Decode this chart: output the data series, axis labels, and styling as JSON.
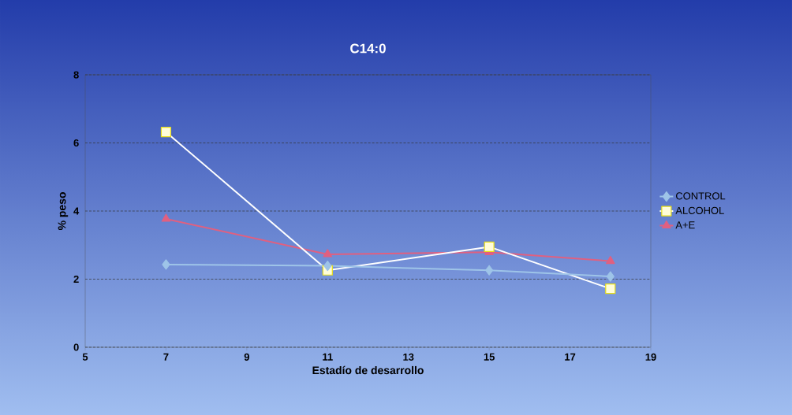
{
  "chart_data": {
    "type": "line",
    "title": "C14:0",
    "xlabel": "Estadío de desarrollo",
    "ylabel": "% peso",
    "x": [
      7,
      11,
      15,
      18
    ],
    "series": [
      {
        "name": "CONTROL",
        "color": "#9ec4e8",
        "marker": "diamond",
        "values": [
          2.43,
          2.39,
          2.26,
          2.08
        ]
      },
      {
        "name": "ALCOHOL",
        "color": "#ffffff",
        "marker": "square",
        "values": [
          6.32,
          2.26,
          2.95,
          1.72
        ]
      },
      {
        "name": "A+E",
        "color": "#e06080",
        "marker": "triangle",
        "values": [
          3.77,
          2.73,
          2.79,
          2.53
        ]
      }
    ],
    "xlim": [
      5,
      19
    ],
    "xticks": [
      5,
      7,
      9,
      11,
      13,
      15,
      17,
      19
    ],
    "ylim": [
      0,
      8
    ],
    "yticks": [
      0,
      2,
      4,
      6,
      8
    ],
    "grid": "y",
    "legend": "right"
  }
}
